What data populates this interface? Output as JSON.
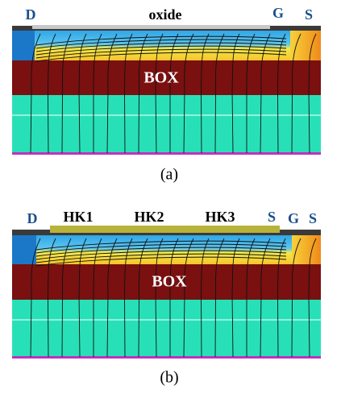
{
  "panels": [
    {
      "labels": [
        "D",
        "oxide",
        "G",
        "S"
      ],
      "box_label": "BOX",
      "caption": "(a)"
    },
    {
      "labels": [
        "D",
        "HK1",
        "HK2",
        "HK3",
        "S",
        "G",
        "S"
      ],
      "box_label": "BOX",
      "caption": "(b)"
    }
  ]
}
